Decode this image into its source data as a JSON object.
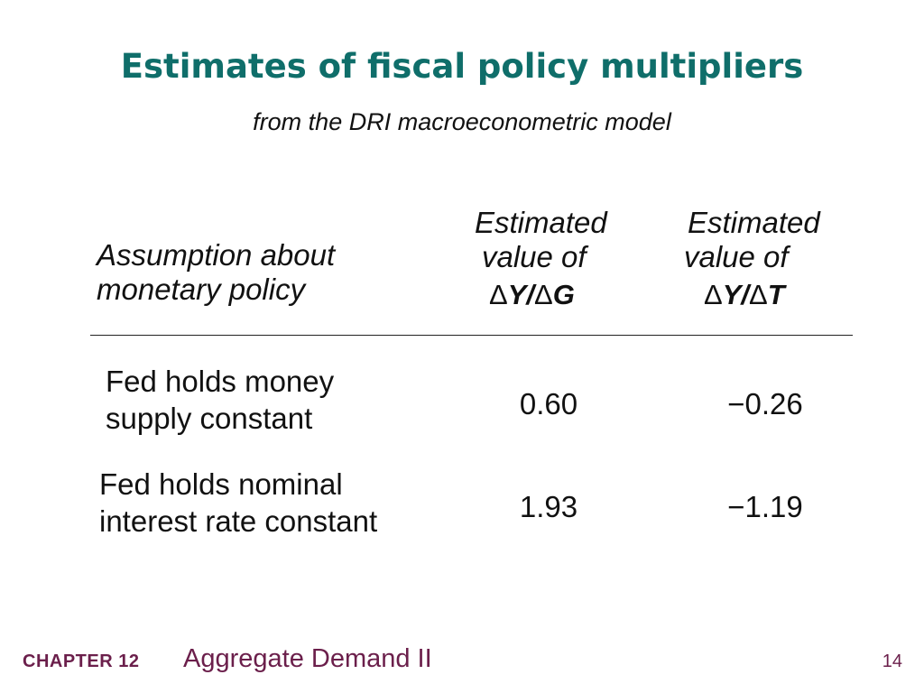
{
  "slide": {
    "title": "Estimates of fiscal policy multipliers",
    "subtitle": "from the DRI macroeconometric model"
  },
  "table": {
    "header": {
      "assumption": [
        "Assumption about",
        "monetary policy"
      ],
      "col_g": {
        "lines": [
          "Estimated",
          "value of"
        ],
        "delta1": "Δ",
        "var1": "Y",
        "slash": "/",
        "delta2": "Δ",
        "var2": "G"
      },
      "col_t": {
        "lines": [
          "Estimated",
          "value of"
        ],
        "delta1": "Δ",
        "var1": "Y",
        "slash": "/",
        "delta2": "Δ",
        "var2": "T"
      }
    },
    "rows": [
      {
        "label": [
          "Fed holds money",
          "supply constant"
        ],
        "dY_dG": "0.60",
        "dY_dT": "−0.26"
      },
      {
        "label": [
          "Fed holds nominal",
          "interest rate constant"
        ],
        "dY_dG": "1.93",
        "dY_dT": "−1.19"
      }
    ]
  },
  "footer": {
    "chapter": "CHAPTER 12",
    "topic": "Aggregate Demand II",
    "page": "14"
  },
  "colors": {
    "title": "#0f6e6a",
    "footer": "#6b1f4b",
    "text": "#111111"
  }
}
